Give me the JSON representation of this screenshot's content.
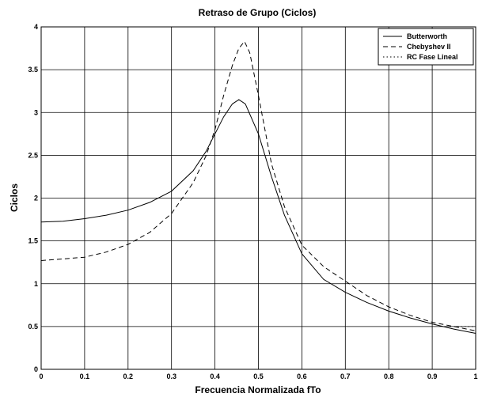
{
  "chart_data": {
    "type": "line",
    "title": "Retraso de Grupo (Ciclos)",
    "xlabel": "Frecuencia Normalizada fTo",
    "ylabel": "Ciclos",
    "xlim": [
      0,
      1
    ],
    "ylim": [
      0,
      4
    ],
    "xticks": [
      "0",
      "0.1",
      "0.2",
      "0.3",
      "0.4",
      "0.5",
      "0.6",
      "0.7",
      "0.8",
      "0.9",
      "1"
    ],
    "yticks": [
      "0",
      "0.5",
      "1",
      "1.5",
      "2",
      "2.5",
      "3",
      "3.5",
      "4"
    ],
    "grid": true,
    "legend_position": "top-right",
    "series": [
      {
        "name": "Butterworth",
        "style": "solid",
        "x": [
          0,
          0.05,
          0.1,
          0.15,
          0.2,
          0.25,
          0.3,
          0.35,
          0.38,
          0.4,
          0.42,
          0.44,
          0.455,
          0.47,
          0.5,
          0.53,
          0.56,
          0.6,
          0.65,
          0.7,
          0.75,
          0.8,
          0.85,
          0.9,
          0.95,
          1.0
        ],
        "y": [
          1.72,
          1.73,
          1.76,
          1.8,
          1.86,
          1.95,
          2.08,
          2.32,
          2.55,
          2.75,
          2.95,
          3.1,
          3.15,
          3.1,
          2.75,
          2.25,
          1.8,
          1.35,
          1.05,
          0.9,
          0.78,
          0.68,
          0.6,
          0.53,
          0.47,
          0.42
        ]
      },
      {
        "name": "Chebyshev II",
        "style": "dashed",
        "x": [
          0,
          0.05,
          0.1,
          0.15,
          0.2,
          0.25,
          0.3,
          0.35,
          0.38,
          0.4,
          0.42,
          0.44,
          0.455,
          0.468,
          0.48,
          0.5,
          0.53,
          0.56,
          0.6,
          0.65,
          0.7,
          0.75,
          0.8,
          0.85,
          0.9,
          0.95,
          1.0
        ],
        "y": [
          1.27,
          1.29,
          1.31,
          1.37,
          1.46,
          1.6,
          1.82,
          2.18,
          2.5,
          2.8,
          3.2,
          3.55,
          3.75,
          3.83,
          3.7,
          3.2,
          2.4,
          1.9,
          1.45,
          1.2,
          1.03,
          0.86,
          0.73,
          0.63,
          0.55,
          0.5,
          0.45
        ]
      },
      {
        "name": "RC Fase Lineal",
        "style": "dotted",
        "x": [
          0.95,
          1.0
        ],
        "y": [
          0.5,
          0.5
        ]
      }
    ]
  }
}
